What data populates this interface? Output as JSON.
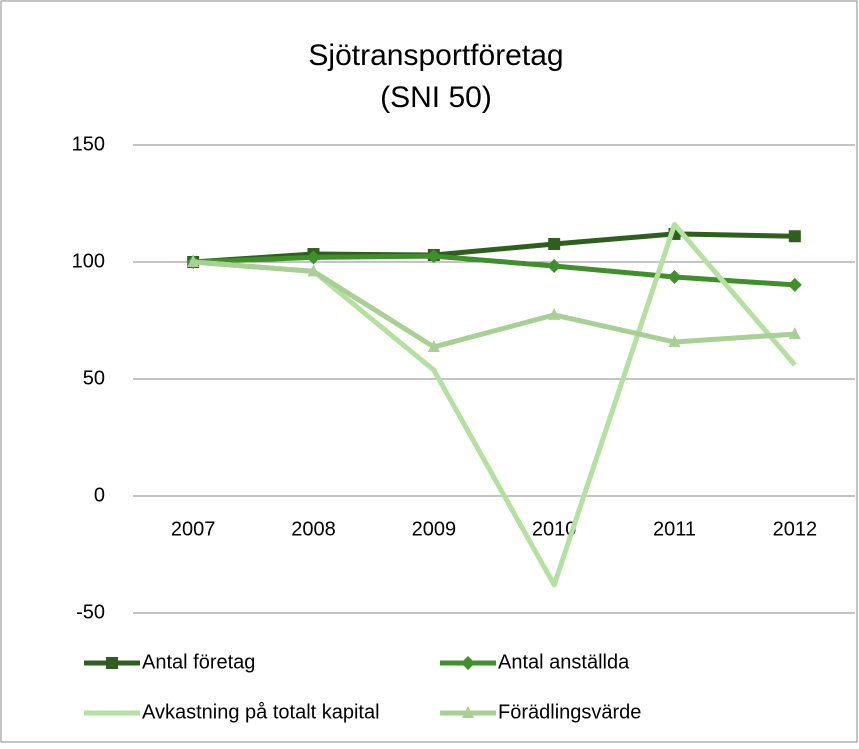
{
  "chart_data": {
    "type": "line",
    "title": [
      "Sjötransportföretag",
      "(SNI 50)"
    ],
    "categories": [
      "2007",
      "2008",
      "2009",
      "2010",
      "2011",
      "2012"
    ],
    "series": [
      {
        "name": "Antal företag",
        "color": "#2f5f1f",
        "marker": "square",
        "values": [
          100,
          103.4,
          103,
          107.7,
          112,
          111
        ]
      },
      {
        "name": "Antal anställda",
        "color": "#3f8f2a",
        "marker": "diamond",
        "values": [
          100,
          102,
          102.5,
          98.3,
          93.6,
          90.2
        ]
      },
      {
        "name": "Avkastning på totalt kapital",
        "color": "#b4e0a0",
        "marker": "none",
        "values": [
          100,
          96,
          53.8,
          -38,
          116,
          56
        ]
      },
      {
        "name": "Förädlingsvärde",
        "color": "#a8cf94",
        "marker": "triangle",
        "values": [
          100,
          96,
          63.7,
          77.4,
          65.8,
          69.2
        ]
      }
    ],
    "ylim": [
      -50,
      150
    ],
    "yticks": [
      -50,
      0,
      50,
      100,
      150
    ],
    "grid": true
  }
}
